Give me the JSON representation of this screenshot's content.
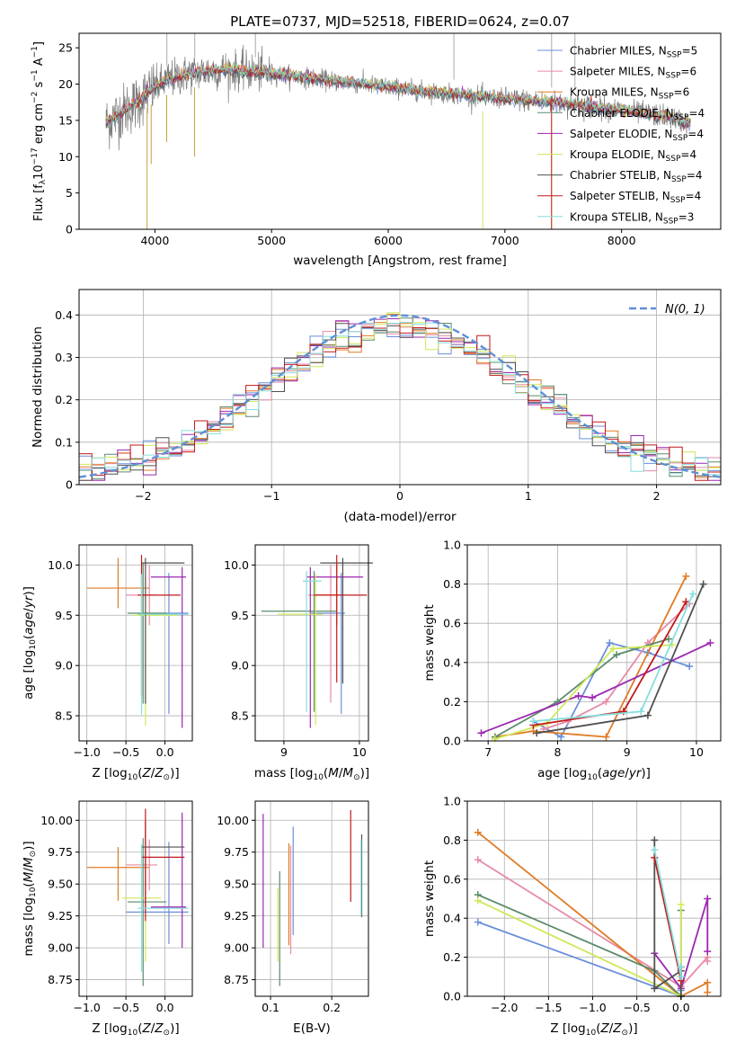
{
  "figure_title": "PLATE=0737, MJD=52518, FIBERID=0624, z=0.07",
  "legend": [
    {
      "label": "Chabrier MILES, N$_{SSP}$=5",
      "color": "#6a8fdb",
      "text": "Chabrier MILES, N",
      "sub": "SSP",
      "tail": "=5"
    },
    {
      "label": "Salpeter MILES, N$_{SSP}$=6",
      "color": "#e88aa7",
      "text": "Salpeter MILES, N",
      "sub": "SSP",
      "tail": "=6"
    },
    {
      "label": "Kroupa MILES, N$_{SSP}$=6",
      "color": "#e07b24",
      "text": "Kroupa MILES, N",
      "sub": "SSP",
      "tail": "=6"
    },
    {
      "label": "Chabrier ELODIE, N$_{SSP}$=4",
      "color": "#5b8b6b",
      "text": "Chabrier ELODIE, N",
      "sub": "SSP",
      "tail": "=4"
    },
    {
      "label": "Salpeter ELODIE, N$_{SSP}$=4",
      "color": "#9b27b0",
      "text": "Salpeter ELODIE, N",
      "sub": "SSP",
      "tail": "=4"
    },
    {
      "label": "Kroupa ELODIE, N$_{SSP}$=4",
      "color": "#cfe85a",
      "text": "Kroupa ELODIE, N",
      "sub": "SSP",
      "tail": "=4"
    },
    {
      "label": "Chabrier STELIB, N$_{SSP}$=4",
      "color": "#505050",
      "text": "Chabrier STELIB, N",
      "sub": "SSP",
      "tail": "=4"
    },
    {
      "label": "Salpeter STELIB, N$_{SSP}$=4",
      "color": "#c21a1a",
      "text": "Salpeter STELIB, N",
      "sub": "SSP",
      "tail": "=4"
    },
    {
      "label": "Kroupa STELIB, N$_{SSP}$=3",
      "color": "#86dede",
      "text": "Kroupa STELIB, N",
      "sub": "SSP",
      "tail": "=3"
    }
  ],
  "chart_data": [
    {
      "id": "spectrum",
      "type": "line",
      "xlabel": "wavelength [Angstrom, rest frame]",
      "ylabel": "Flux [f_λ 10^-17 erg cm^-2 s^-1 A^-1]",
      "xlim": [
        3350,
        8850
      ],
      "ylim": [
        0,
        27
      ],
      "xticks": [
        4000,
        5000,
        6000,
        7000,
        8000
      ],
      "yticks": [
        0,
        5,
        10,
        15,
        20,
        25
      ],
      "continuum": [
        [
          3580,
          14.6
        ],
        [
          3700,
          16
        ],
        [
          3850,
          17.5
        ],
        [
          3950,
          19
        ],
        [
          4100,
          20.5
        ],
        [
          4300,
          21.5
        ],
        [
          4600,
          22
        ],
        [
          5000,
          21.5
        ],
        [
          5500,
          20.5
        ],
        [
          6000,
          19.6
        ],
        [
          6500,
          18.7
        ],
        [
          7000,
          18
        ],
        [
          7500,
          17.4
        ],
        [
          8000,
          16.4
        ],
        [
          8400,
          15.5
        ],
        [
          8590,
          14.5
        ]
      ],
      "spikes_down": [
        [
          3933,
          0
        ],
        [
          3968,
          9
        ],
        [
          4101,
          12
        ],
        [
          4340,
          10
        ],
        [
          6810,
          0
        ],
        [
          7400,
          0
        ]
      ]
    },
    {
      "id": "residuals",
      "type": "step",
      "xlabel": "(data-model)/error",
      "ylabel": "Normed distribution",
      "xlim": [
        -2.5,
        2.5
      ],
      "ylim": [
        0,
        0.46
      ],
      "xticks": [
        -2,
        -1,
        0,
        1,
        2
      ],
      "yticks": [
        0,
        0.1,
        0.2,
        0.3,
        0.4
      ],
      "reference_label": "$\\mathcal{N}(0,1)$",
      "reference_display": "N(0, 1)"
    },
    {
      "id": "age_vs_Z",
      "type": "errorbar",
      "xlabel": "Z [log10(Z/Z_sun)]",
      "ylabel": "age  [log10(age/yr)]",
      "xlim": [
        -1.1,
        0.35
      ],
      "ylim": [
        8.25,
        10.2
      ],
      "xticks": [
        -1.0,
        -0.5,
        0.0
      ],
      "yticks": [
        8.5,
        9.0,
        9.5,
        10.0
      ],
      "points": [
        {
          "x": 0.05,
          "xerr": [
            0.3,
            0.25
          ],
          "y": 9.52,
          "yerr": [
            1.0,
            0.4
          ],
          "color": "#6a8fdb"
        },
        {
          "x": -0.2,
          "xerr": [
            0.3,
            0.1
          ],
          "y": 9.7,
          "yerr": [
            0.3,
            0.3
          ],
          "color": "#e88aa7"
        },
        {
          "x": -0.6,
          "xerr": [
            0.4,
            0.4
          ],
          "y": 9.77,
          "yerr": [
            0.2,
            0.3
          ],
          "color": "#e07b24"
        },
        {
          "x": -0.28,
          "xerr": [
            0.2,
            0.3
          ],
          "y": 9.52,
          "yerr": [
            0.9,
            0.5
          ],
          "color": "#5b8b6b"
        },
        {
          "x": 0.22,
          "xerr": [
            0.4,
            0.05
          ],
          "y": 9.88,
          "yerr": [
            1.5,
            0.1
          ],
          "color": "#9b27b0"
        },
        {
          "x": -0.25,
          "xerr": [
            0.15,
            0.4
          ],
          "y": 9.5,
          "yerr": [
            1.1,
            0.4
          ],
          "color": "#cfe85a"
        },
        {
          "x": -0.25,
          "xerr": [
            0.05,
            0.5
          ],
          "y": 10.02,
          "yerr": [
            1.4,
            0.05
          ],
          "color": "#505050"
        },
        {
          "x": -0.3,
          "xerr": [
            0.05,
            0.5
          ],
          "y": 9.7,
          "yerr": [
            1.0,
            0.4
          ],
          "color": "#c21a1a"
        },
        {
          "x": -0.3,
          "xerr": [
            0.05,
            0.6
          ],
          "y": 9.51,
          "yerr": [
            1.0,
            0.4
          ],
          "color": "#86dede"
        }
      ]
    },
    {
      "id": "age_vs_mass",
      "type": "errorbar",
      "xlabel": "mass [log10(M/M_sun)]",
      "ylabel": "",
      "xlim": [
        8.62,
        10.12
      ],
      "ylim": [
        8.25,
        10.2
      ],
      "xticks": [
        9,
        10
      ],
      "yticks": [
        8.5,
        9.0,
        9.5,
        10.0
      ],
      "points": [
        {
          "x": 9.76,
          "xerr": [
            0.4,
            0.05
          ],
          "y": 9.52,
          "yerr": [
            1.0,
            0.4
          ],
          "color": "#6a8fdb"
        },
        {
          "x": 9.62,
          "xerr": [
            0.3,
            0.1
          ],
          "y": 9.7,
          "yerr": [
            1.07,
            0.3
          ],
          "color": "#e88aa7"
        },
        {
          "x": 9.7,
          "xerr": [
            0.3,
            0.1
          ],
          "y": 9.7,
          "yerr": [
            0.3,
            0.3
          ],
          "color": "#e07b24"
        },
        {
          "x": 9.4,
          "xerr": [
            0.7,
            0.3
          ],
          "y": 9.54,
          "yerr": [
            1.0,
            0.4
          ],
          "color": "#5b8b6b"
        },
        {
          "x": 9.35,
          "xerr": [
            0.05,
            0.7
          ],
          "y": 9.88,
          "yerr": [
            1.5,
            0.1
          ],
          "color": "#9b27b0"
        },
        {
          "x": 9.42,
          "xerr": [
            0.5,
            0.1
          ],
          "y": 9.51,
          "yerr": [
            1.1,
            0.4
          ],
          "color": "#cfe85a"
        },
        {
          "x": 9.78,
          "xerr": [
            0.3,
            0.4
          ],
          "y": 10.02,
          "yerr": [
            1.2,
            0.05
          ],
          "color": "#505050"
        },
        {
          "x": 9.7,
          "xerr": [
            0.3,
            0.4
          ],
          "y": 9.7,
          "yerr": [
            0.87,
            0.4
          ],
          "color": "#c21a1a"
        },
        {
          "x": 9.3,
          "xerr": [
            0.05,
            0.2
          ],
          "y": 9.84,
          "yerr": [
            1.3,
            0.1
          ],
          "color": "#86dede"
        }
      ]
    },
    {
      "id": "massweight_vs_age",
      "type": "line",
      "xlabel": "age  [log10(age/yr)]",
      "ylabel": "mass weight",
      "xlim": [
        6.7,
        10.35
      ],
      "ylim": [
        0,
        1
      ],
      "xticks": [
        7,
        8,
        9,
        10
      ],
      "yticks": [
        0.0,
        0.2,
        0.4,
        0.6,
        0.8,
        1.0
      ],
      "series": [
        {
          "color": "#6a8fdb",
          "x": [
            7.65,
            8.05,
            8.75,
            9.3,
            9.9
          ],
          "y": [
            0.1,
            0.02,
            0.5,
            0.45,
            0.38
          ]
        },
        {
          "color": "#e88aa7",
          "x": [
            7.8,
            8.15,
            8.7,
            9.3,
            9.9
          ],
          "y": [
            0.06,
            0.1,
            0.2,
            0.5,
            0.7
          ]
        },
        {
          "color": "#e07b24",
          "x": [
            7.1,
            7.65,
            8.7,
            9.85
          ],
          "y": [
            0.02,
            0.05,
            0.02,
            0.84
          ]
        },
        {
          "color": "#5b8b6b",
          "x": [
            7.1,
            8.0,
            8.85,
            9.6
          ],
          "y": [
            0.02,
            0.2,
            0.44,
            0.52
          ]
        },
        {
          "color": "#9b27b0",
          "x": [
            6.9,
            8.3,
            8.5,
            10.2
          ],
          "y": [
            0.04,
            0.23,
            0.22,
            0.5
          ]
        },
        {
          "color": "#cfe85a",
          "x": [
            7.1,
            7.85,
            8.8,
            9.65
          ],
          "y": [
            0.01,
            0.09,
            0.47,
            0.49
          ]
        },
        {
          "color": "#505050",
          "x": [
            7.7,
            9.3,
            10.1
          ],
          "y": [
            0.04,
            0.13,
            0.8
          ]
        },
        {
          "color": "#c21a1a",
          "x": [
            7.65,
            8.95,
            9.85
          ],
          "y": [
            0.08,
            0.15,
            0.71
          ]
        },
        {
          "color": "#86dede",
          "x": [
            7.65,
            9.2,
            9.95
          ],
          "y": [
            0.1,
            0.15,
            0.75
          ]
        }
      ]
    },
    {
      "id": "mass_vs_Z",
      "type": "errorbar",
      "xlabel": "Z [log10(Z/Z_sun)]",
      "ylabel": "mass [log10(M/M_sun)]",
      "xlim": [
        -1.1,
        0.35
      ],
      "ylim": [
        8.62,
        10.15
      ],
      "xticks": [
        -1.0,
        -0.5,
        0.0
      ],
      "yticks": [
        8.75,
        9.0,
        9.25,
        9.5,
        9.75,
        10.0
      ],
      "points": [
        {
          "x": 0.05,
          "xerr": [
            0.55,
            0.25
          ],
          "y": 9.28,
          "yerr": [
            0.25,
            0.55
          ],
          "color": "#6a8fdb"
        },
        {
          "x": -0.2,
          "xerr": [
            0.3,
            0.1
          ],
          "y": 9.65,
          "yerr": [
            0.2,
            0.2
          ],
          "color": "#e88aa7"
        },
        {
          "x": -0.6,
          "xerr": [
            0.4,
            0.4
          ],
          "y": 9.63,
          "yerr": [
            0.26,
            0.16
          ],
          "color": "#e07b24"
        },
        {
          "x": -0.28,
          "xerr": [
            0.2,
            0.3
          ],
          "y": 9.36,
          "yerr": [
            0.66,
            0.5
          ],
          "color": "#5b8b6b"
        },
        {
          "x": 0.22,
          "xerr": [
            0.4,
            0.05
          ],
          "y": 9.32,
          "yerr": [
            0.32,
            0.74
          ],
          "color": "#9b27b0"
        },
        {
          "x": -0.25,
          "xerr": [
            0.3,
            0.2
          ],
          "y": 9.39,
          "yerr": [
            0.5,
            0.5
          ],
          "color": "#cfe85a"
        },
        {
          "x": -0.25,
          "xerr": [
            0.05,
            0.5
          ],
          "y": 9.79,
          "yerr": [
            0.5,
            0.2
          ],
          "color": "#505050"
        },
        {
          "x": -0.25,
          "xerr": [
            0.05,
            0.5
          ],
          "y": 9.71,
          "yerr": [
            0.5,
            0.38
          ],
          "color": "#c21a1a"
        },
        {
          "x": -0.3,
          "xerr": [
            0.05,
            0.6
          ],
          "y": 9.31,
          "yerr": [
            0.5,
            0.5
          ],
          "color": "#86dede"
        }
      ]
    },
    {
      "id": "mass_vs_EBV",
      "type": "errorbar",
      "xlabel": "E(B-V)",
      "ylabel": "",
      "xlim": [
        0.075,
        0.26
      ],
      "ylim": [
        8.62,
        10.15
      ],
      "xticks": [
        0.1,
        0.2
      ],
      "yticks": [
        8.75,
        9.0,
        9.25,
        9.5,
        9.75,
        10.0
      ],
      "points": [
        {
          "x": 0.137,
          "yerr": [
            0.35,
            0.5
          ],
          "y": 9.45,
          "color": "#6a8fdb"
        },
        {
          "x": 0.133,
          "yerr": [
            0.45,
            0.4
          ],
          "y": 9.4,
          "color": "#e88aa7"
        },
        {
          "x": 0.13,
          "yerr": [
            0.4,
            0.4
          ],
          "y": 9.42,
          "color": "#e07b24"
        },
        {
          "x": 0.115,
          "yerr": [
            0.4,
            0.5
          ],
          "y": 9.1,
          "color": "#5b8b6b"
        },
        {
          "x": 0.088,
          "yerr": [
            1.05,
            0.0
          ],
          "y": 10.05,
          "color": "#9b27b0"
        },
        {
          "x": 0.112,
          "yerr": [
            0.58,
            0.0
          ],
          "y": 9.47,
          "color": "#cfe85a"
        },
        {
          "x": 0.249,
          "yerr": [
            0.65,
            0.0
          ],
          "y": 9.89,
          "color": "#505050"
        },
        {
          "x": 0.231,
          "yerr": [
            0.72,
            0.0
          ],
          "y": 10.08,
          "color": "#c21a1a"
        },
        {
          "x": 0.248,
          "yerr": [
            0.6,
            0.0
          ],
          "y": 9.85,
          "color": "#86dede"
        }
      ]
    },
    {
      "id": "massweight_vs_Z",
      "type": "line",
      "xlabel": "Z [log10(Z/Z_sun)]",
      "ylabel": "mass weight",
      "xlim": [
        -2.42,
        0.45
      ],
      "ylim": [
        0,
        1
      ],
      "xticks": [
        -2.0,
        -1.5,
        -1.0,
        -0.5,
        0.0
      ],
      "yticks": [
        0.0,
        0.2,
        0.4,
        0.6,
        0.8,
        1.0
      ],
      "series": [
        {
          "color": "#6a8fdb",
          "x": [
            -2.3,
            0.0,
            0.0
          ],
          "y": [
            0.38,
            0.0,
            0.03
          ]
        },
        {
          "color": "#e88aa7",
          "x": [
            -2.3,
            0.0,
            0.3,
            0.3
          ],
          "y": [
            0.7,
            0.05,
            0.2,
            0.18
          ]
        },
        {
          "color": "#e07b24",
          "x": [
            -2.3,
            0.0,
            0.3,
            0.3
          ],
          "y": [
            0.84,
            0.0,
            0.07,
            0.02
          ]
        },
        {
          "color": "#5b8b6b",
          "x": [
            -2.3,
            -0.3,
            0.0,
            0.0
          ],
          "y": [
            0.52,
            0.13,
            0.0,
            0.44
          ]
        },
        {
          "color": "#9b27b0",
          "x": [
            -0.3,
            0.0,
            0.3,
            0.3
          ],
          "y": [
            0.22,
            0.04,
            0.5,
            0.23
          ]
        },
        {
          "color": "#cfe85a",
          "x": [
            -2.3,
            0.0,
            0.0
          ],
          "y": [
            0.49,
            0.0,
            0.47
          ]
        },
        {
          "color": "#505050",
          "x": [
            -0.3,
            -0.3,
            0.0,
            0.0
          ],
          "y": [
            0.8,
            0.04,
            0.13,
            0.0
          ]
        },
        {
          "color": "#c21a1a",
          "x": [
            -0.3,
            0.0,
            0.0
          ],
          "y": [
            0.71,
            0.08,
            0.15
          ]
        },
        {
          "color": "#86dede",
          "x": [
            -0.3,
            0.0,
            0.0
          ],
          "y": [
            0.75,
            0.1,
            0.15
          ]
        }
      ]
    }
  ]
}
